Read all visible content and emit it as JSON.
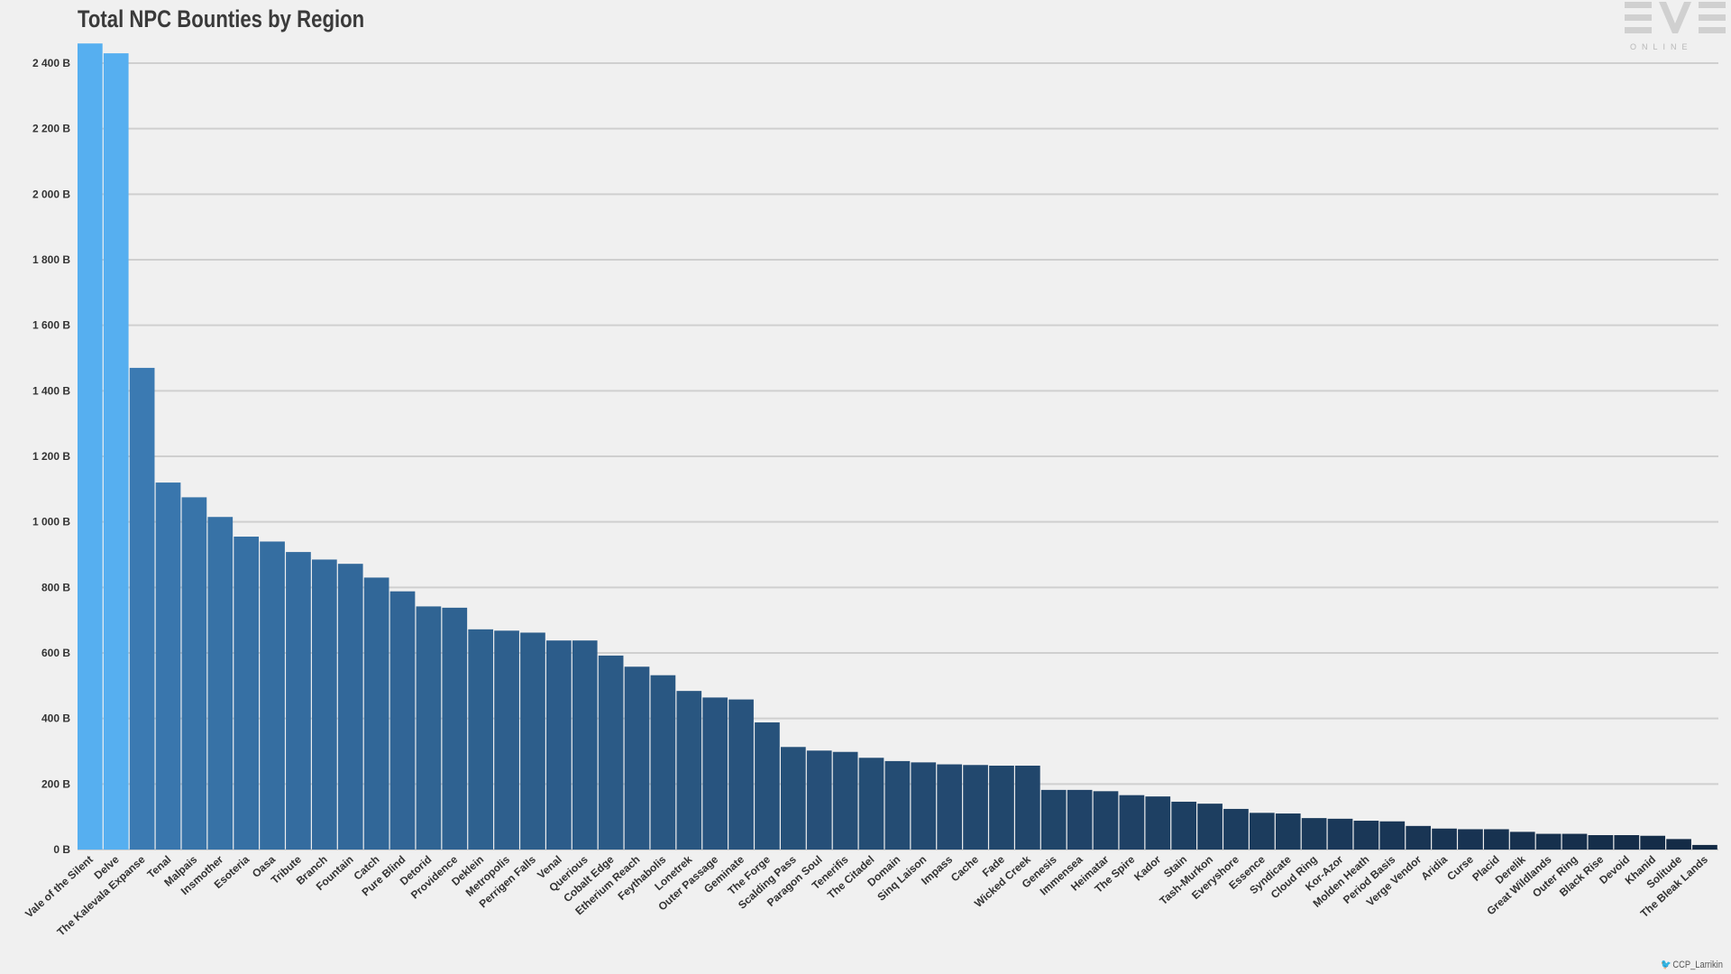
{
  "brand": {
    "logo_text": "EVE",
    "logo_subtext": "ONLINE",
    "credit": "CCP_Larrikin"
  },
  "chart_data": {
    "type": "bar",
    "title": "Total NPC Bounties by Region",
    "xlabel": "",
    "ylabel": "",
    "ylim": [
      0,
      2500
    ],
    "yticks": [
      0,
      200,
      400,
      600,
      800,
      1000,
      1200,
      1400,
      1600,
      1800,
      2000,
      2200,
      2400
    ],
    "ytick_labels": [
      "0 B",
      "200 B",
      "400 B",
      "600 B",
      "800 B",
      "1 000 B",
      "1 200 B",
      "1 400 B",
      "1 600 B",
      "1 800 B",
      "2 000 B",
      "2 200 B",
      "2 400 B"
    ],
    "grid": true,
    "legend": "none",
    "categories": [
      "Vale of the Silent",
      "Delve",
      "The Kalevala Expanse",
      "Tenal",
      "Malpais",
      "Insmother",
      "Esoteria",
      "Oasa",
      "Tribute",
      "Branch",
      "Fountain",
      "Catch",
      "Pure Blind",
      "Detorid",
      "Providence",
      "Deklein",
      "Metropolis",
      "Perrigen Falls",
      "Venal",
      "Querious",
      "Cobalt Edge",
      "Etherium Reach",
      "Feythabolis",
      "Lonetrek",
      "Outer Passage",
      "Geminate",
      "The Forge",
      "Scalding Pass",
      "Paragon Soul",
      "Tenerifis",
      "The Citadel",
      "Domain",
      "Sinq Laison",
      "Impass",
      "Cache",
      "Fade",
      "Wicked Creek",
      "Genesis",
      "Immensea",
      "Heimatar",
      "The Spire",
      "Kador",
      "Stain",
      "Tash-Murkon",
      "Everyshore",
      "Essence",
      "Syndicate",
      "Cloud Ring",
      "Kor-Azor",
      "Molden Heath",
      "Period Basis",
      "Verge Vendor",
      "Aridia",
      "Curse",
      "Placid",
      "Derelik",
      "Great Wildlands",
      "Outer Ring",
      "Black Rise",
      "Devoid",
      "Khanid",
      "Solitude",
      "The Bleak Lands"
    ],
    "values": [
      2460,
      2430,
      1470,
      1120,
      1075,
      1015,
      955,
      940,
      908,
      885,
      872,
      830,
      788,
      742,
      738,
      672,
      668,
      662,
      638,
      638,
      592,
      558,
      532,
      484,
      464,
      458,
      388,
      313,
      302,
      298,
      280,
      270,
      266,
      260,
      258,
      256,
      256,
      182,
      182,
      178,
      166,
      162,
      146,
      140,
      124,
      112,
      110,
      96,
      94,
      88,
      86,
      72,
      64,
      62,
      62,
      54,
      48,
      48,
      44,
      44,
      42,
      32,
      14
    ],
    "colors": {
      "top": "#56aff0",
      "gradient_start": "#3b7ab2",
      "gradient_end": "#132a45",
      "grid": "#cfcfcf",
      "axis_text": "#333333"
    }
  }
}
